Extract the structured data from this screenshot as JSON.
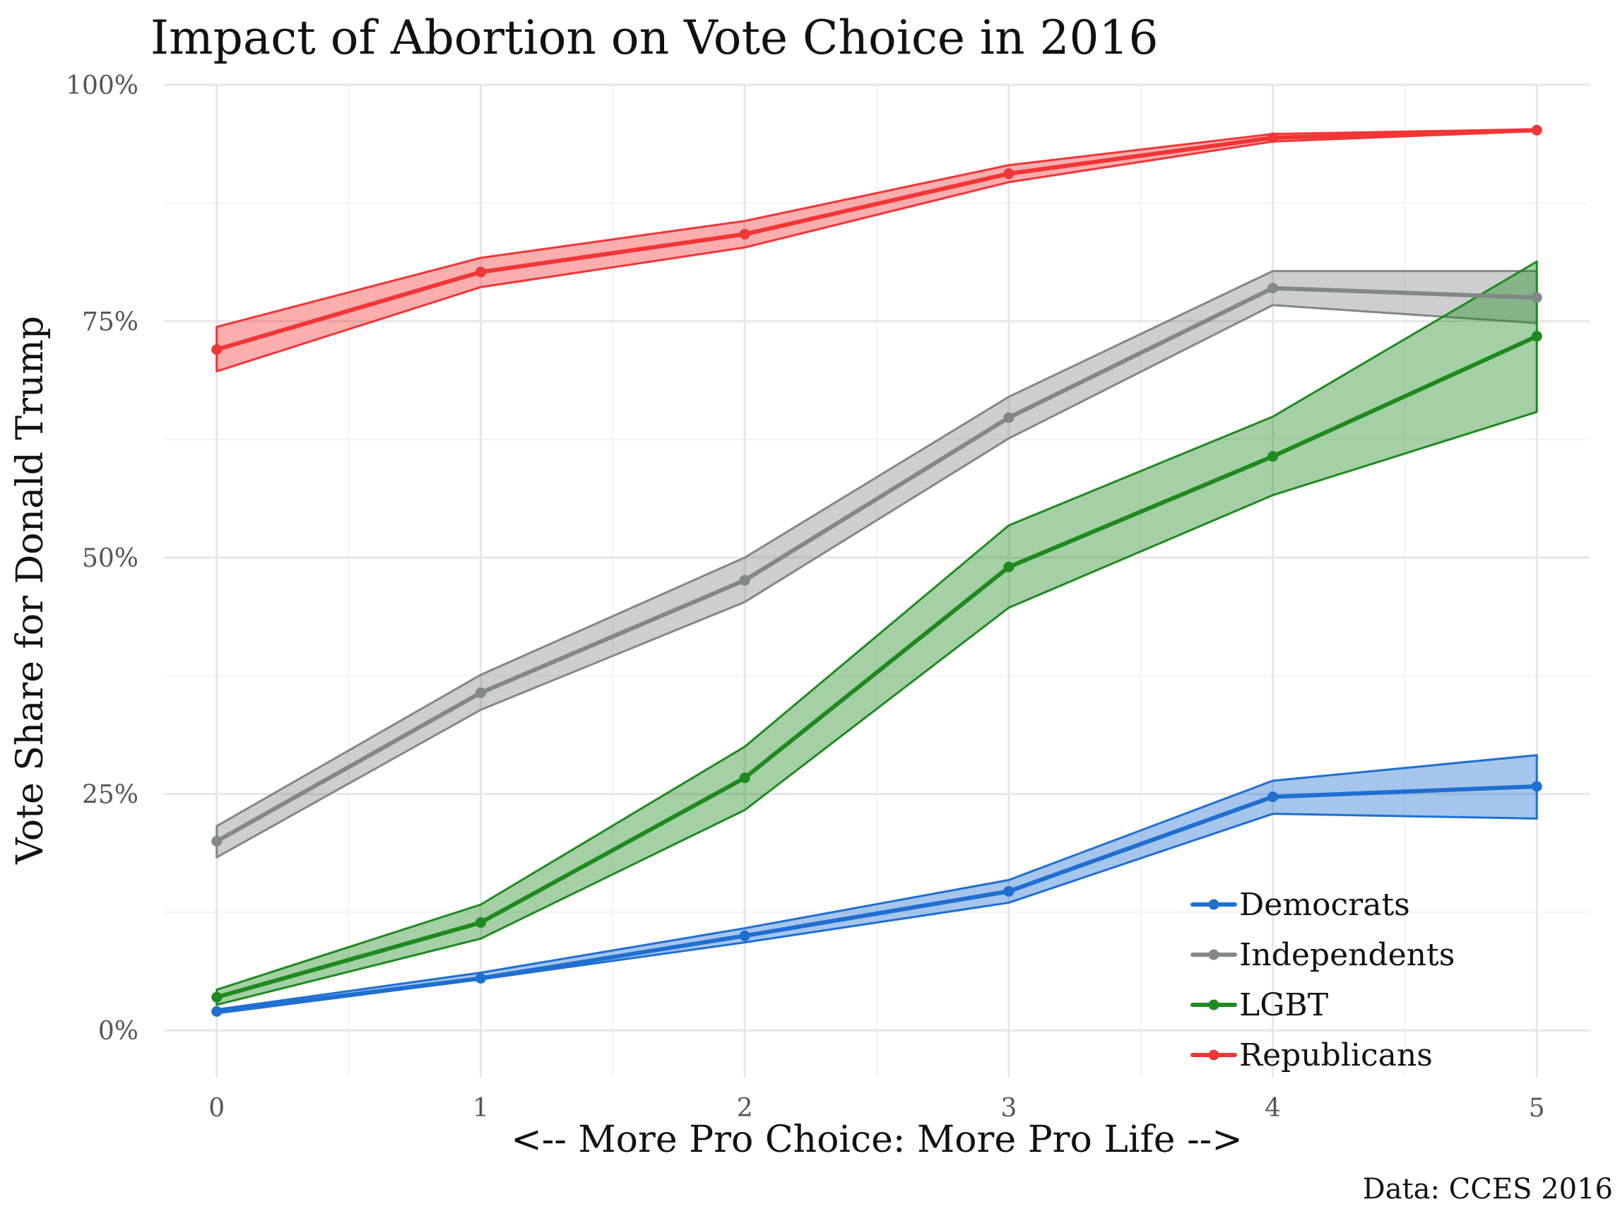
{
  "colors": {
    "democrats": "#1f6fd0",
    "independents": "#828787",
    "lgbt": "#1f8a1f",
    "republicans": "#f23535"
  },
  "chart_data": {
    "type": "line",
    "title": "Impact of Abortion on Vote Choice in 2016",
    "xlabel": "<-- More Pro Choice: More Pro Life -->",
    "ylabel": "Vote Share for Donald Trump",
    "caption": "Data: CCES 2016",
    "x": [
      0,
      1,
      2,
      3,
      4,
      5
    ],
    "x_tick_labels": [
      "0",
      "1",
      "2",
      "3",
      "4",
      "5"
    ],
    "xlim": [
      -0.2,
      5.2
    ],
    "ylim": [
      -0.05,
      1.0
    ],
    "y_ticks": [
      0,
      0.25,
      0.5,
      0.75,
      1.0
    ],
    "y_tick_labels": [
      "0%",
      "25%",
      "50%",
      "75%",
      "100%"
    ],
    "grid": true,
    "legend_position": "bottom-right",
    "series": [
      {
        "name": "Democrats",
        "color_key": "democrats",
        "values": [
          0.02,
          0.055,
          0.1,
          0.147,
          0.247,
          0.258
        ],
        "lower": [
          0.018,
          0.054,
          0.093,
          0.135,
          0.229,
          0.224
        ],
        "upper": [
          0.022,
          0.061,
          0.108,
          0.159,
          0.264,
          0.291
        ]
      },
      {
        "name": "Independents",
        "color_key": "independents",
        "values": [
          0.2,
          0.357,
          0.476,
          0.648,
          0.785,
          0.775
        ],
        "lower": [
          0.183,
          0.339,
          0.453,
          0.626,
          0.767,
          0.748
        ],
        "upper": [
          0.216,
          0.376,
          0.5,
          0.67,
          0.803,
          0.803
        ]
      },
      {
        "name": "LGBT",
        "color_key": "lgbt",
        "values": [
          0.035,
          0.114,
          0.267,
          0.49,
          0.607,
          0.734
        ],
        "lower": [
          0.027,
          0.097,
          0.233,
          0.447,
          0.566,
          0.654
        ],
        "upper": [
          0.043,
          0.133,
          0.3,
          0.534,
          0.649,
          0.813
        ]
      },
      {
        "name": "Republicans",
        "color_key": "republicans",
        "values": [
          0.72,
          0.802,
          0.842,
          0.906,
          0.944,
          0.952
        ],
        "lower": [
          0.697,
          0.786,
          0.828,
          0.897,
          0.94,
          0.951
        ],
        "upper": [
          0.744,
          0.817,
          0.856,
          0.915,
          0.948,
          0.953
        ]
      }
    ]
  }
}
